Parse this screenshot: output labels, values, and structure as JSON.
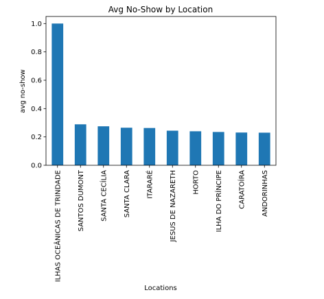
{
  "chart_data": {
    "type": "bar",
    "title": "Avg No-Show by Location",
    "xlabel": "Locations",
    "ylabel": "avg no-show",
    "categories": [
      "ILHAS OCEÂNICAS DE TRINDADE",
      "SANTOS DUMONT",
      "SANTA CECÍLIA",
      "SANTA CLARA",
      "ITARARÉ",
      "JESUS DE NAZARETH",
      "HORTO",
      "ILHA DO PRÍNCIPE",
      "CARATOÍRA",
      "ANDORINHAS"
    ],
    "values": [
      1.0,
      0.289,
      0.275,
      0.265,
      0.263,
      0.244,
      0.24,
      0.235,
      0.231,
      0.23
    ],
    "ylim": [
      0,
      1.05
    ],
    "yticks": [
      "0.0",
      "0.2",
      "0.4",
      "0.6",
      "0.8",
      "1.0"
    ],
    "grid": false,
    "bar_color": "#1f77b4"
  }
}
